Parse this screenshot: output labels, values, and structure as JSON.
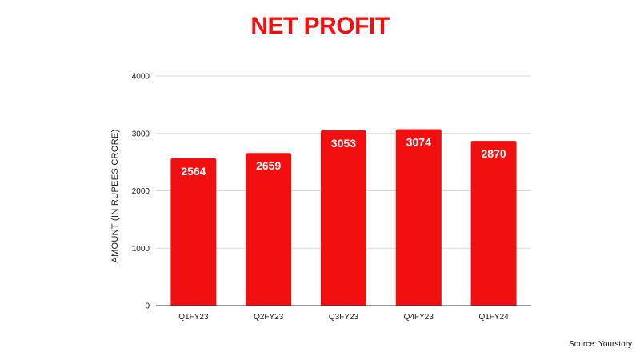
{
  "chart_data": {
    "type": "bar",
    "title": "NET PROFIT",
    "xlabel": "",
    "ylabel": "AMOUNT (IN RUPEES CRORE)",
    "categories": [
      "Q1FY23",
      "Q2FY23",
      "Q3FY23",
      "Q4FY23",
      "Q1FY24"
    ],
    "values": [
      2564,
      2659,
      3053,
      3074,
      2870
    ],
    "data_labels": [
      "2564",
      "2659",
      "3053",
      "3074",
      "2870"
    ],
    "ylim": [
      0,
      4000
    ],
    "yticks": [
      0,
      1000,
      2000,
      3000,
      4000
    ],
    "ytick_labels": [
      "0",
      "1000",
      "2000",
      "3000",
      "4000"
    ],
    "grid": true,
    "legend": "none",
    "bar_color": "#f20f0f",
    "title_color": "#f20f0f"
  },
  "source": "Source: Yourstory"
}
